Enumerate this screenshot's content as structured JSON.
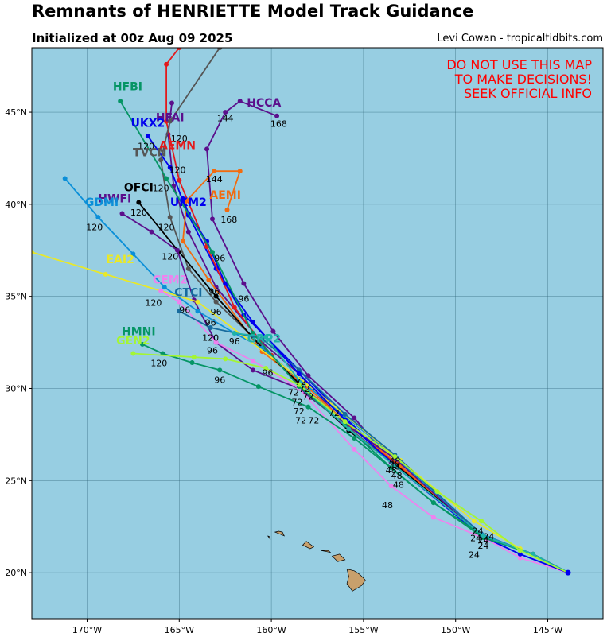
{
  "header": {
    "title": "Remnants of HENRIETTE Model Track Guidance",
    "subtitle": "Initialized at 00z Aug 09 2025",
    "credit": "Levi Cowan - tropicaltidbits.com"
  },
  "warning": [
    "DO NOT USE THIS MAP",
    "TO MAKE DECISIONS!",
    "SEEK OFFICIAL INFO"
  ],
  "axes": {
    "lon_range": [
      -173,
      -142
    ],
    "lat_range": [
      17.5,
      48.5
    ],
    "lon_ticks": [
      -170,
      -165,
      -160,
      -155,
      -150,
      -145
    ],
    "lon_tick_labels": [
      "170°W",
      "165°W",
      "160°W",
      "155°W",
      "150°W",
      "145°W"
    ],
    "lat_ticks": [
      20,
      25,
      30,
      35,
      40,
      45
    ],
    "lat_tick_labels": [
      "20°N",
      "25°N",
      "30°N",
      "35°N",
      "40°N",
      "45°N"
    ]
  },
  "colors": {
    "ocean": "#97cee2",
    "land": "#c8a06c",
    "warning": "#ff0000"
  },
  "islands": [
    [
      [
        -155.9,
        20.2
      ],
      [
        -155.8,
        19.8
      ],
      [
        -155.9,
        19.4
      ],
      [
        -155.6,
        19.0
      ],
      [
        -155.1,
        19.3
      ],
      [
        -154.9,
        19.6
      ],
      [
        -155.2,
        19.9
      ],
      [
        -155.5,
        20.1
      ]
    ],
    [
      [
        -156.7,
        20.9
      ],
      [
        -156.4,
        20.6
      ],
      [
        -156.0,
        20.7
      ],
      [
        -156.3,
        21.0
      ]
    ],
    [
      [
        -157.3,
        21.2
      ],
      [
        -156.8,
        21.1
      ],
      [
        -156.9,
        21.2
      ]
    ],
    [
      [
        -158.3,
        21.5
      ],
      [
        -157.9,
        21.3
      ],
      [
        -157.7,
        21.4
      ],
      [
        -158.1,
        21.7
      ]
    ],
    [
      [
        -159.8,
        22.2
      ],
      [
        -159.3,
        22.0
      ],
      [
        -159.4,
        22.2
      ],
      [
        -159.6,
        22.25
      ]
    ],
    [
      [
        -160.2,
        22.0
      ],
      [
        -160.05,
        21.8
      ],
      [
        -160.1,
        21.95
      ]
    ]
  ],
  "chart_data": {
    "type": "map",
    "start": [
      -143.9,
      20.0
    ],
    "tracks": [
      {
        "name": "HCCA",
        "color": "#5b0f8c",
        "points": [
          [
            -145.8,
            21.0
          ],
          [
            -148.5,
            22.0
          ],
          [
            -153.5,
            26.0
          ],
          [
            -155.5,
            28.4
          ],
          [
            -158.0,
            30.7
          ],
          [
            -159.9,
            33.1
          ],
          [
            -161.5,
            35.7
          ],
          [
            -163.2,
            39.2
          ],
          [
            -163.5,
            43.0
          ],
          [
            -162.5,
            45.0
          ],
          [
            -161.7,
            45.6
          ],
          [
            -159.7,
            44.8
          ]
        ],
        "labels": [
          [
            "72",
            -158.2,
            29.8
          ],
          [
            "96",
            -161.5,
            34.7
          ],
          [
            "144",
            -162.5,
            44.5
          ],
          [
            "168",
            -159.6,
            44.2
          ]
        ],
        "name_pos": [
          -160.4,
          45.3
        ]
      },
      {
        "name": "HFAI",
        "color": "#5b0f8c",
        "points": [
          [
            -145.8,
            21.0
          ],
          [
            -148.5,
            22.0
          ],
          [
            -153.3,
            26.0
          ],
          [
            -156.2,
            28.3
          ],
          [
            -158.5,
            30.8
          ],
          [
            -160.5,
            32.5
          ],
          [
            -163.0,
            35.5
          ],
          [
            -164.5,
            38.5
          ],
          [
            -165.3,
            41.0
          ],
          [
            -165.6,
            43.8
          ],
          [
            -165.4,
            45.5
          ]
        ],
        "labels": [
          [
            "120",
            -165.0,
            43.4
          ]
        ],
        "name_pos": [
          -165.5,
          44.5
        ]
      },
      {
        "name": "UKX2",
        "color": "#0000ee",
        "points": [
          [
            -145.8,
            21.0
          ],
          [
            -148.4,
            21.9
          ],
          [
            -153.2,
            25.8
          ],
          [
            -156.0,
            28.4
          ],
          [
            -158.5,
            31.0
          ],
          [
            -161.5,
            34.0
          ],
          [
            -163.0,
            36.5
          ],
          [
            -164.5,
            39.4
          ],
          [
            -165.5,
            42.0
          ],
          [
            -166.7,
            43.7
          ]
        ],
        "labels": [
          [
            "120",
            -166.8,
            43.0
          ]
        ],
        "name_pos": [
          -166.7,
          44.2
        ]
      },
      {
        "name": "AEMN",
        "color": "#e31a1c",
        "points": [
          [
            -145.8,
            21.0
          ],
          [
            -148.6,
            22.1
          ],
          [
            -153.2,
            25.9
          ],
          [
            -156.0,
            28.2
          ],
          [
            -158.2,
            30.0
          ],
          [
            -160.0,
            31.8
          ],
          [
            -162.0,
            34.4
          ],
          [
            -163.5,
            37.7
          ],
          [
            -165.0,
            41.3
          ],
          [
            -165.7,
            44.5
          ],
          [
            -165.7,
            47.6
          ],
          [
            -165.0,
            48.5
          ]
        ],
        "labels": [
          [
            "120",
            -165.1,
            41.7
          ]
        ],
        "name_pos": [
          -165.1,
          43.0
        ]
      },
      {
        "name": "AEMI",
        "color": "#f26b0f",
        "points": [
          [
            -145.8,
            21.0
          ],
          [
            -148.5,
            22.0
          ],
          [
            -153.0,
            25.8
          ],
          [
            -156.0,
            28.2
          ],
          [
            -158.3,
            30.3
          ],
          [
            -160.5,
            32.0
          ],
          [
            -163.4,
            35.9
          ],
          [
            -164.8,
            38.0
          ],
          [
            -164.6,
            40.2
          ],
          [
            -163.1,
            41.8
          ],
          [
            -161.7,
            41.8
          ],
          [
            -162.4,
            39.7
          ]
        ],
        "labels": [
          [
            "96",
            -163.1,
            35.1
          ],
          [
            "144",
            -163.1,
            41.2
          ],
          [
            "168",
            -162.3,
            39.0
          ]
        ],
        "name_pos": [
          -162.5,
          40.3
        ]
      },
      {
        "name": "TVCN",
        "color": "#555555",
        "points": [
          [
            -145.8,
            21.0
          ],
          [
            -148.5,
            22.0
          ],
          [
            -153.2,
            25.8
          ],
          [
            -156.0,
            28.0
          ],
          [
            -158.3,
            30.0
          ],
          [
            -161.0,
            32.8
          ],
          [
            -163.0,
            34.7
          ],
          [
            -164.5,
            36.5
          ],
          [
            -165.5,
            39.3
          ],
          [
            -166.0,
            42.4
          ],
          [
            -165.5,
            44.5
          ],
          [
            -162.8,
            48.5
          ]
        ],
        "labels": [
          [
            "96",
            -163.0,
            34.0
          ],
          [
            "120",
            -165.7,
            38.6
          ]
        ],
        "name_pos": [
          -166.6,
          42.6
        ]
      },
      {
        "name": "OFCI",
        "color": "#000000",
        "points": [
          [
            -145.8,
            21.0
          ],
          [
            -148.5,
            22.0
          ],
          [
            -153.2,
            25.8
          ],
          [
            -155.8,
            27.7
          ],
          [
            -158.0,
            29.8
          ],
          [
            -160.5,
            32.2
          ],
          [
            -163.0,
            35.0
          ],
          [
            -165.0,
            37.4
          ],
          [
            -167.2,
            40.1
          ]
        ],
        "labels": [
          [
            "120",
            -167.2,
            39.4
          ]
        ],
        "name_pos": [
          -167.2,
          40.7
        ]
      },
      {
        "name": "HWFI",
        "color": "#5b0f8c",
        "points": [
          [
            -145.8,
            21.0
          ],
          [
            -148.6,
            22.0
          ],
          [
            -153.3,
            26.2
          ],
          [
            -156.2,
            28.2
          ],
          [
            -158.5,
            30.0
          ],
          [
            -161.0,
            31.0
          ],
          [
            -163.0,
            32.5
          ],
          [
            -164.2,
            34.8
          ],
          [
            -165.1,
            37.5
          ],
          [
            -166.5,
            38.5
          ],
          [
            -168.1,
            39.5
          ]
        ],
        "labels": [
          [
            "96",
            -163.2,
            31.9
          ],
          [
            "120",
            -165.5,
            37.0
          ]
        ],
        "name_pos": [
          -168.5,
          40.1
        ]
      },
      {
        "name": "GDMI",
        "color": "#0b8fd8",
        "points": [
          [
            -145.8,
            21.0
          ],
          [
            -148.6,
            22.1
          ],
          [
            -153.2,
            26.2
          ],
          [
            -156.0,
            28.5
          ],
          [
            -158.5,
            30.5
          ],
          [
            -160.5,
            32.2
          ],
          [
            -162.0,
            33.0
          ],
          [
            -164.0,
            34.2
          ],
          [
            -165.8,
            35.5
          ],
          [
            -167.5,
            37.3
          ],
          [
            -169.4,
            39.3
          ],
          [
            -171.2,
            41.4
          ]
        ],
        "labels": [
          [
            "120",
            -169.6,
            38.6
          ]
        ],
        "name_pos": [
          -169.2,
          39.9
        ]
      },
      {
        "name": "EAI2",
        "color": "#e8e82a",
        "points": [
          [
            -143.9,
            20.0
          ],
          [
            -146.5,
            21.3
          ],
          [
            -149.0,
            22.8
          ],
          [
            -153.0,
            26.1
          ],
          [
            -158.0,
            30.2
          ],
          [
            -164.0,
            34.7
          ],
          [
            -169.0,
            36.2
          ],
          [
            -173.0,
            37.4
          ]
        ],
        "labels": [
          [
            "96",
            -164.7,
            34.1
          ],
          [
            "120",
            -166.4,
            34.5
          ]
        ],
        "name_pos": [
          -168.2,
          36.8
        ]
      },
      {
        "name": "CEM2",
        "color": "#ee82ee",
        "points": [
          [
            -143.9,
            20.0
          ],
          [
            -146.5,
            20.8
          ],
          [
            -148.3,
            21.8
          ],
          [
            -151.2,
            23.0
          ],
          [
            -153.5,
            24.7
          ],
          [
            -155.5,
            26.7
          ],
          [
            -158.5,
            30.0
          ],
          [
            -161.0,
            31.5
          ],
          [
            -163.0,
            32.5
          ],
          [
            -165.0,
            34.7
          ],
          [
            -166.0,
            35.3
          ]
        ],
        "labels": [
          [
            "96",
            -163.3,
            33.4
          ]
        ],
        "name_pos": [
          -165.5,
          35.7
        ]
      },
      {
        "name": "CTCI",
        "color": "#176b9e",
        "points": [
          [
            -145.8,
            21.0
          ],
          [
            -148.5,
            22.0
          ],
          [
            -153.3,
            26.4
          ],
          [
            -156.0,
            28.6
          ],
          [
            -158.5,
            31.0
          ],
          [
            -160.5,
            32.7
          ],
          [
            -163.3,
            33.3
          ],
          [
            -165.0,
            34.2
          ]
        ],
        "labels": [
          [
            "120",
            -163.3,
            32.6
          ]
        ],
        "name_pos": [
          -164.5,
          35.0
        ]
      },
      {
        "name": "UKM2",
        "color": "#0000ee",
        "points": [
          [
            -143.9,
            20.0
          ],
          [
            -146.5,
            21.0
          ],
          [
            -148.6,
            22.0
          ],
          [
            -153.3,
            25.8
          ],
          [
            -156.0,
            28.3
          ],
          [
            -158.5,
            30.8
          ],
          [
            -161.0,
            33.6
          ],
          [
            -162.5,
            35.7
          ],
          [
            -163.5,
            38.0
          ],
          [
            -164.5,
            39.5
          ],
          [
            -164.8,
            40.3
          ]
        ],
        "labels": [
          [
            "96",
            -162.8,
            36.9
          ]
        ],
        "name_pos": [
          -164.5,
          39.9
        ]
      },
      {
        "name": "HMNI",
        "color": "#059565",
        "points": [
          [
            -145.8,
            21.0
          ],
          [
            -148.5,
            22.0
          ],
          [
            -151.2,
            23.8
          ],
          [
            -155.5,
            27.3
          ],
          [
            -158.0,
            29.0
          ],
          [
            -160.7,
            30.1
          ],
          [
            -162.8,
            31.0
          ],
          [
            -164.3,
            31.4
          ],
          [
            -165.9,
            31.9
          ],
          [
            -167.0,
            32.4
          ]
        ],
        "labels": [
          [
            "96",
            -162.8,
            30.3
          ],
          [
            "120",
            -166.1,
            31.2
          ]
        ],
        "name_pos": [
          -167.2,
          32.9
        ]
      },
      {
        "name": "HFBI",
        "color": "#059565",
        "points": [
          [
            -145.8,
            21.0
          ],
          [
            -148.5,
            21.9
          ],
          [
            -151.2,
            23.8
          ],
          [
            -153.5,
            25.7
          ],
          [
            -156.0,
            28.0
          ],
          [
            -158.5,
            30.1
          ],
          [
            -161.0,
            33.0
          ],
          [
            -163.2,
            37.4
          ],
          [
            -165.7,
            41.4
          ],
          [
            -168.2,
            45.6
          ]
        ],
        "labels": [
          [
            "120",
            -166.0,
            40.7
          ]
        ],
        "name_pos": [
          -167.8,
          46.2
        ]
      },
      {
        "name": "GRP2",
        "color": "#20b2aa",
        "points": [
          [
            -145.8,
            21.0
          ],
          [
            -148.5,
            22.0
          ],
          [
            -153.3,
            25.8
          ],
          [
            -155.8,
            27.8
          ],
          [
            -158.0,
            29.8
          ],
          [
            -160.3,
            32.8
          ],
          [
            -162.0,
            33.0
          ]
        ],
        "labels": [
          [
            "96",
            -162.0,
            32.4
          ]
        ],
        "name_pos": [
          -160.4,
          32.5
        ]
      },
      {
        "name": "GEN2",
        "color": "#a4f534",
        "points": [
          [
            -143.9,
            20.0
          ],
          [
            -146.5,
            21.2
          ],
          [
            -148.6,
            22.8
          ],
          [
            -151.0,
            24.4
          ],
          [
            -153.3,
            26.3
          ],
          [
            -156.0,
            28.2
          ],
          [
            -158.5,
            30.2
          ],
          [
            -160.3,
            31.1
          ],
          [
            -162.5,
            31.6
          ],
          [
            -164.2,
            31.7
          ],
          [
            -167.5,
            31.9
          ]
        ],
        "labels": [
          [
            "96",
            -160.2,
            30.7
          ]
        ],
        "name_pos": [
          -167.5,
          32.4
        ]
      }
    ],
    "time_labels": [
      [
        "24",
        -148.5,
        21.6
      ],
      [
        "24",
        -148.8,
        22.1
      ],
      [
        "24",
        -148.2,
        21.8
      ],
      [
        "24",
        -148.9,
        21.7
      ],
      [
        "24",
        -148.5,
        21.3
      ],
      [
        "24",
        -149.0,
        20.8
      ],
      [
        "48",
        -153.3,
        25.9
      ],
      [
        "48",
        -153.2,
        25.1
      ],
      [
        "48",
        -153.1,
        24.6
      ],
      [
        "48",
        -153.5,
        25.4
      ],
      [
        "48",
        -153.7,
        23.5
      ],
      [
        "48",
        -153.3,
        25.6
      ],
      [
        "72",
        -158.4,
        30.2
      ],
      [
        "72",
        -158.0,
        29.4
      ],
      [
        "72",
        -158.6,
        29.1
      ],
      [
        "72",
        -158.5,
        28.6
      ],
      [
        "72",
        -158.4,
        28.1
      ],
      [
        "72",
        -157.7,
        28.1
      ],
      [
        "72",
        -158.8,
        29.6
      ],
      [
        "72",
        -156.6,
        28.5
      ]
    ]
  }
}
